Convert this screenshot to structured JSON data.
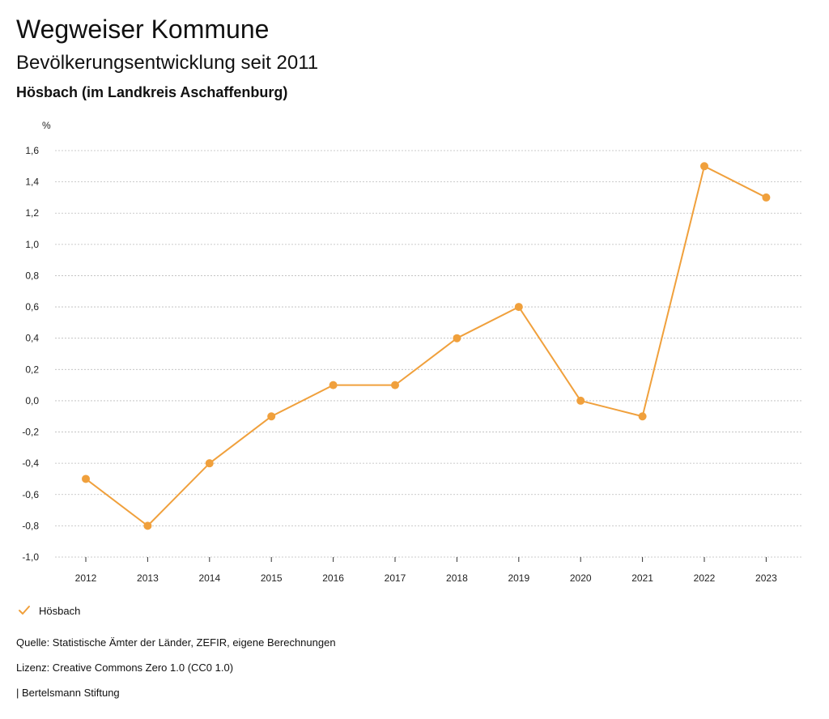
{
  "header": {
    "title": "Wegweiser Kommune",
    "subtitle": "Bevölkerungsentwicklung seit 2011",
    "region": "Hösbach (im Landkreis Aschaffenburg)"
  },
  "colors": {
    "series": "#f0a03c",
    "grid": "#bbbbbb",
    "axis": "#333333"
  },
  "chart_data": {
    "type": "line",
    "ylabel": "%",
    "ylim": [
      -1.0,
      1.6
    ],
    "yticks": [
      "1,6",
      "1,4",
      "1,2",
      "1,0",
      "0,8",
      "0,6",
      "0,4",
      "0,2",
      "0,0",
      "-0,2",
      "-0,4",
      "-0,6",
      "-0,8",
      "-1,0"
    ],
    "ytick_values": [
      1.6,
      1.4,
      1.2,
      1.0,
      0.8,
      0.6,
      0.4,
      0.2,
      0.0,
      -0.2,
      -0.4,
      -0.6,
      -0.8,
      -1.0
    ],
    "categories": [
      "2012",
      "2013",
      "2014",
      "2015",
      "2016",
      "2017",
      "2018",
      "2019",
      "2020",
      "2021",
      "2022",
      "2023"
    ],
    "series": [
      {
        "name": "Hösbach",
        "values": [
          -0.5,
          -0.8,
          -0.4,
          -0.1,
          0.1,
          0.1,
          0.4,
          0.6,
          0.0,
          -0.1,
          1.5,
          1.3
        ]
      }
    ],
    "grid": true,
    "legend": "bottom-left"
  },
  "footer": {
    "source": "Quelle: Statistische Ämter der Länder, ZEFIR, eigene Berechnungen",
    "license": "Lizenz: Creative Commons Zero 1.0 (CC0 1.0)",
    "publisher": "| Bertelsmann Stiftung"
  }
}
